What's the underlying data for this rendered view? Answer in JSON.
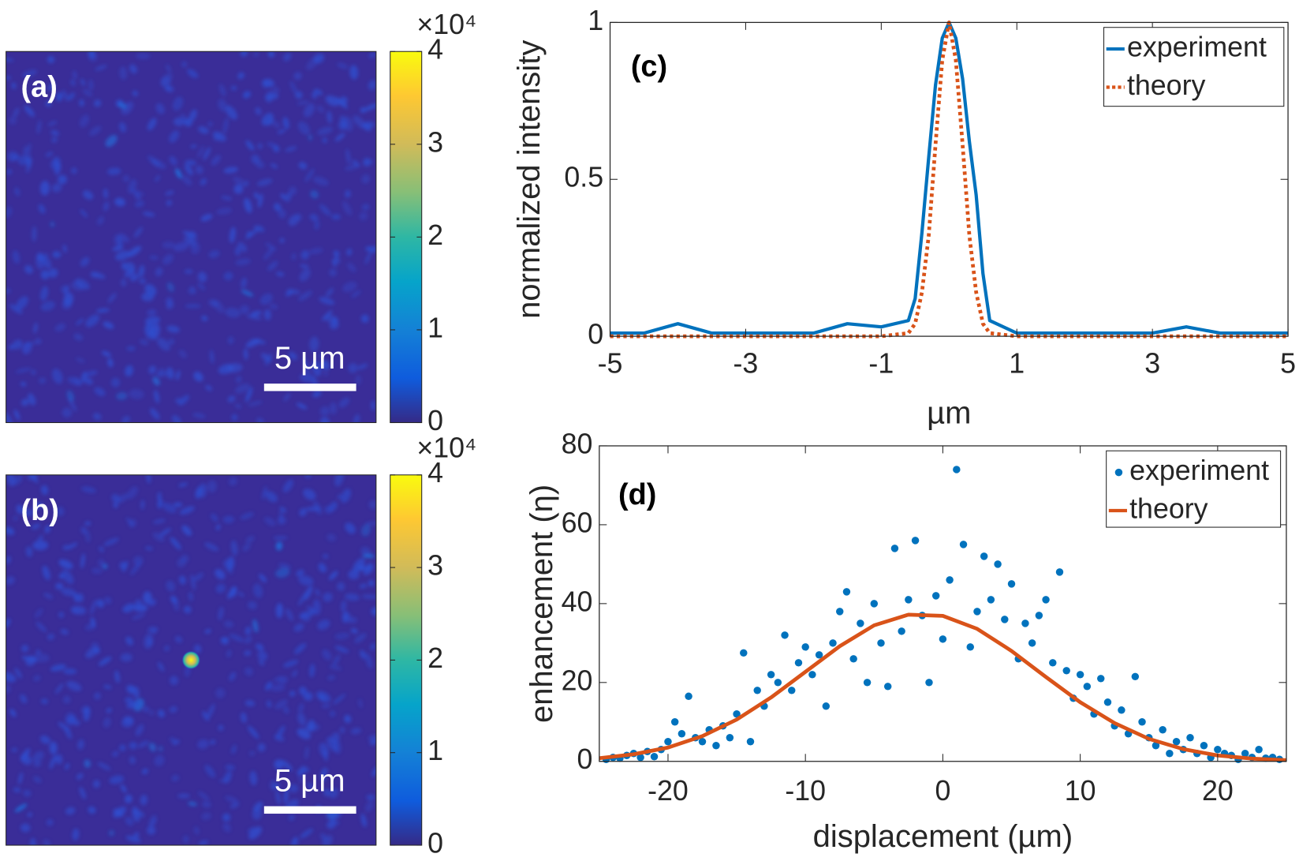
{
  "chart_data": [
    {
      "type": "image",
      "panel_label": "(a)",
      "scale_bar_label": "5 µm",
      "colorbar_multiplier": "×10⁴",
      "clim": [
        0,
        4
      ],
      "cticks": [
        0,
        1,
        2,
        3,
        4
      ]
    },
    {
      "type": "image",
      "panel_label": "(b)",
      "scale_bar_label": "5 µm",
      "colorbar_multiplier": "×10⁴",
      "clim": [
        0,
        4
      ],
      "cticks": [
        0,
        1,
        2,
        3,
        4
      ]
    },
    {
      "type": "line",
      "panel_label": "(c)",
      "xlabel": "µm",
      "ylabel": "normalized intensity",
      "x": [
        -5,
        -4.5,
        -4,
        -3.5,
        -3,
        -2.5,
        -2,
        -1.5,
        -1,
        -0.6,
        -0.5,
        -0.4,
        -0.3,
        -0.2,
        -0.1,
        0,
        0.1,
        0.2,
        0.3,
        0.4,
        0.5,
        0.6,
        1,
        1.5,
        2,
        2.5,
        3,
        3.5,
        4,
        4.5,
        5
      ],
      "series": [
        {
          "name": "experiment",
          "color": "#0072bd",
          "dash": "solid",
          "values": [
            0.01,
            0.01,
            0.04,
            0.01,
            0.01,
            0.01,
            0.01,
            0.04,
            0.03,
            0.05,
            0.12,
            0.33,
            0.57,
            0.8,
            0.95,
            1,
            0.95,
            0.82,
            0.62,
            0.45,
            0.2,
            0.05,
            0.01,
            0.01,
            0.01,
            0.01,
            0.01,
            0.03,
            0.01,
            0.01,
            0.01
          ]
        },
        {
          "name": "theory",
          "color": "#d95319",
          "dash": "dotted",
          "values": [
            0,
            0,
            0,
            0,
            0,
            0,
            0,
            0,
            0,
            0.01,
            0.04,
            0.14,
            0.32,
            0.61,
            0.88,
            1,
            0.88,
            0.61,
            0.32,
            0.14,
            0.04,
            0.01,
            0,
            0,
            0,
            0,
            0,
            0,
            0,
            0,
            0
          ]
        }
      ],
      "xlim": [
        -5,
        5
      ],
      "xticks": [
        -5,
        -3,
        -1,
        1,
        3,
        5
      ],
      "ylim": [
        0,
        1
      ],
      "yticks": [
        0,
        0.5,
        1
      ],
      "grid": false,
      "legend": "upper right"
    },
    {
      "type": "scatter",
      "panel_label": "(d)",
      "xlabel": "displacement (µm)",
      "ylabel": "enhancement (η)",
      "series": [
        {
          "name": "experiment",
          "color": "#0072bd",
          "mode": "markers",
          "x": [
            -24.5,
            -24,
            -23.5,
            -23,
            -22.5,
            -22,
            -21.5,
            -21,
            -20.5,
            -20,
            -19.5,
            -19,
            -18.5,
            -18,
            -17.5,
            -17,
            -16.5,
            -16,
            -15.5,
            -15,
            -14.5,
            -14,
            -13.5,
            -13,
            -12.5,
            -12,
            -11.5,
            -11,
            -10.5,
            -10,
            -9.5,
            -9,
            -8.5,
            -8,
            -7.5,
            -7,
            -6.5,
            -6,
            -5.5,
            -5,
            -4.5,
            -4,
            -3.5,
            -3,
            -2.5,
            -2,
            -1.5,
            -1,
            -0.5,
            0,
            0.5,
            1,
            1.5,
            2,
            2.5,
            3,
            3.5,
            4,
            4.5,
            5,
            5.5,
            6,
            6.5,
            7,
            7.5,
            8,
            8.5,
            9,
            9.5,
            10,
            10.5,
            11,
            11.5,
            12,
            12.5,
            13,
            13.5,
            14,
            14.5,
            15,
            15.5,
            16,
            16.5,
            17,
            17.5,
            18,
            18.5,
            19,
            19.5,
            20,
            20.5,
            21,
            21.5,
            22,
            22.5,
            23,
            23.5,
            24,
            24.5
          ],
          "values": [
            0.5,
            1,
            0.8,
            1.5,
            2,
            1,
            2.5,
            1.2,
            3,
            5,
            10,
            7,
            16.5,
            6,
            5,
            8,
            4,
            9,
            6,
            12,
            27.5,
            5,
            18,
            14,
            22,
            20,
            32,
            18,
            25,
            29,
            22,
            27,
            14,
            30,
            38,
            43,
            26,
            35,
            20,
            40,
            30,
            19,
            54,
            33,
            41,
            56,
            37,
            20,
            42,
            31,
            46,
            74,
            55,
            29,
            38,
            52,
            41,
            50,
            36,
            45,
            26,
            35,
            30,
            37,
            41,
            25,
            48,
            23,
            16,
            22,
            19,
            12,
            21,
            15,
            9,
            13,
            7,
            21.5,
            10,
            6,
            4,
            8,
            2,
            5,
            3,
            6,
            2,
            4,
            1,
            3,
            2,
            1.5,
            0.5,
            2,
            1,
            3,
            0.8,
            1,
            0.5
          ]
        },
        {
          "name": "theory",
          "color": "#d95319",
          "mode": "line",
          "x": [
            -25,
            -22.5,
            -20,
            -17.5,
            -15,
            -12.5,
            -10,
            -7.5,
            -5,
            -2.5,
            0,
            2.5,
            5,
            7.5,
            10,
            12.5,
            15,
            17.5,
            20,
            22.5,
            25
          ],
          "values": [
            0.8,
            1.8,
            3.5,
            6.4,
            10.6,
            16.2,
            22.7,
            29.2,
            34.5,
            37.2,
            36.9,
            33.6,
            28,
            21.4,
            15,
            9.7,
            5.7,
            3.1,
            1.5,
            0.7,
            0.3
          ]
        }
      ],
      "xlim": [
        -25,
        25
      ],
      "xticks": [
        -20,
        -10,
        0,
        10,
        20
      ],
      "ylim": [
        0,
        80
      ],
      "yticks": [
        0,
        20,
        40,
        60,
        80
      ],
      "grid": false,
      "legend": "upper right"
    }
  ]
}
